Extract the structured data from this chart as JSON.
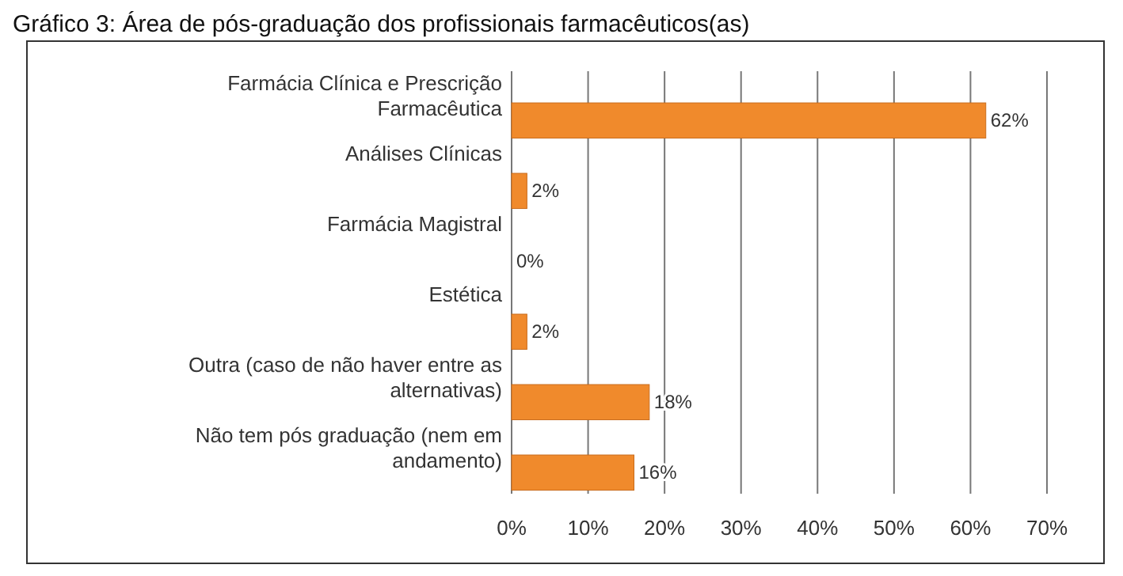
{
  "chart_data": {
    "type": "bar",
    "orientation": "horizontal",
    "title": "Gráfico 3: Área de pós-graduação dos profissionais farmacêuticos(as)",
    "categories": [
      "Farmácia Clínica e Prescrição Farmacêutica",
      "Análises Clínicas",
      "Farmácia Magistral",
      "Estética",
      "Outra (caso de não haver entre as alternativas)",
      "Não tem pós graduação (nem em andamento)"
    ],
    "values": [
      62,
      2,
      0,
      2,
      18,
      16
    ],
    "value_labels": [
      "62%",
      "2%",
      "0%",
      "2%",
      "18%",
      "16%"
    ],
    "color": "#f08a2c",
    "xlim": [
      0,
      70
    ],
    "xticks": [
      {
        "value": 0,
        "label": "0%"
      },
      {
        "value": 10,
        "label": "10%"
      },
      {
        "value": 20,
        "label": "20%"
      },
      {
        "value": 30,
        "label": "30%"
      },
      {
        "value": 40,
        "label": "40%"
      },
      {
        "value": 50,
        "label": "50%"
      },
      {
        "value": 60,
        "label": "60%"
      },
      {
        "value": 70,
        "label": "70%"
      }
    ],
    "grid": "x"
  }
}
